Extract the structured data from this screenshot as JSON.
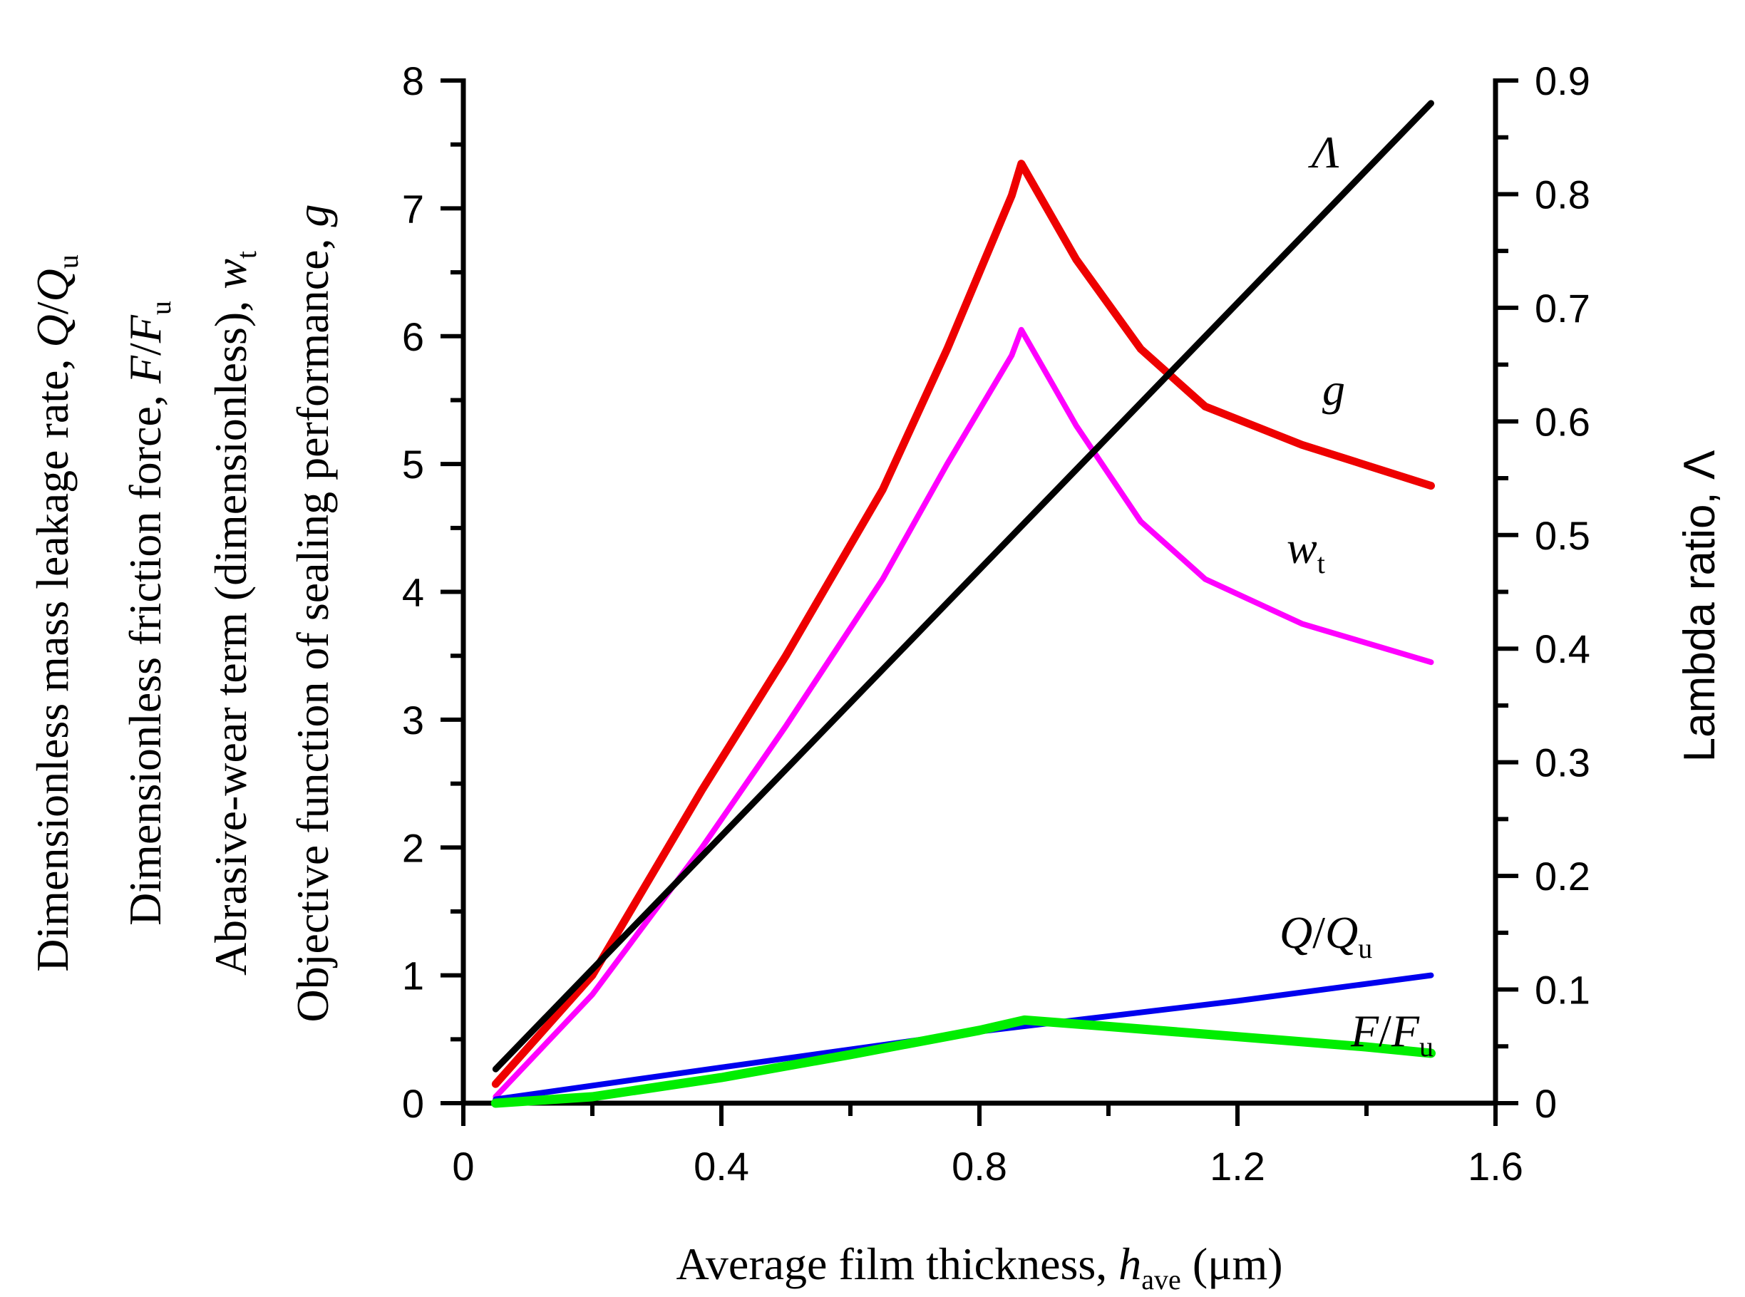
{
  "chart_data": {
    "type": "line",
    "x_axis": {
      "label_prefix": "Average film thickness, ",
      "label_var": "h",
      "label_sub": "ave",
      "label_suffix": " (μm)",
      "range": [
        0,
        1.6
      ],
      "ticks": [
        "0",
        "0.4",
        "0.8",
        "1.2",
        "1.6"
      ]
    },
    "y_axis_left": {
      "range": [
        0,
        8
      ],
      "ticks": [
        "0",
        "1",
        "2",
        "3",
        "4",
        "5",
        "6",
        "7",
        "8"
      ],
      "labels": [
        {
          "text": "Dimensionless mass leakage rate, ",
          "var": "Q",
          "mid": "/",
          "var2": "Q",
          "sub": "u"
        },
        {
          "text": "Dimensionless friction force, ",
          "var": "F",
          "mid": "/",
          "var2": "F",
          "sub": "u"
        },
        {
          "text": "Abrasive-wear term (dimensionless), ",
          "var": "w",
          "mid": "",
          "var2": "",
          "sub": "t"
        },
        {
          "text": "Objective function of sealing performance, ",
          "var": "g",
          "mid": "",
          "var2": "",
          "sub": ""
        }
      ]
    },
    "y_axis_right": {
      "label": "Lambda ratio, ",
      "label_var": "Λ",
      "range": [
        0,
        0.9
      ],
      "ticks": [
        "0",
        "0.1",
        "0.2",
        "0.3",
        "0.4",
        "0.5",
        "0.6",
        "0.7",
        "0.8",
        "0.9"
      ]
    },
    "series": [
      {
        "name": "g",
        "axis": "left",
        "color": "#ee0000",
        "label": {
          "var": "g",
          "mid": "",
          "var2": "",
          "sub": ""
        },
        "x": [
          0.05,
          0.2,
          0.37,
          0.5,
          0.65,
          0.75,
          0.85,
          0.865,
          0.95,
          1.05,
          1.15,
          1.3,
          1.5
        ],
        "y": [
          0.15,
          1.0,
          2.45,
          3.5,
          4.8,
          5.9,
          7.1,
          7.35,
          6.6,
          5.9,
          5.45,
          5.15,
          4.83
        ]
      },
      {
        "name": "w_t",
        "axis": "left",
        "color": "#ff00ff",
        "label": {
          "var": "w",
          "mid": "",
          "var2": "",
          "sub": "t"
        },
        "x": [
          0.05,
          0.2,
          0.37,
          0.5,
          0.65,
          0.75,
          0.85,
          0.865,
          0.95,
          1.05,
          1.15,
          1.3,
          1.5
        ],
        "y": [
          0.05,
          0.85,
          2.0,
          2.95,
          4.1,
          5.0,
          5.85,
          6.05,
          5.3,
          4.55,
          4.1,
          3.75,
          3.45
        ]
      },
      {
        "name": "Λ",
        "axis": "right",
        "color": "#000000",
        "label": {
          "var": "Λ",
          "mid": "",
          "var2": "",
          "sub": ""
        },
        "x": [
          0.05,
          1.5
        ],
        "y": [
          0.03,
          0.88
        ]
      },
      {
        "name": "Q/Q_u",
        "axis": "left",
        "color": "#0000ee",
        "label": {
          "var": "Q",
          "mid": "/",
          "var2": "Q",
          "sub": "u"
        },
        "x": [
          0.05,
          0.4,
          0.8,
          1.2,
          1.5
        ],
        "y": [
          0.03,
          0.28,
          0.56,
          0.8,
          1.0
        ]
      },
      {
        "name": "F/F_u",
        "axis": "left",
        "color": "#00ee00",
        "label": {
          "var": "F",
          "mid": "/",
          "var2": "F",
          "sub": "u"
        },
        "x": [
          0.05,
          0.2,
          0.4,
          0.6,
          0.8,
          0.87,
          1.0,
          1.2,
          1.4,
          1.5
        ],
        "y": [
          0.0,
          0.05,
          0.2,
          0.38,
          0.57,
          0.65,
          0.6,
          0.52,
          0.44,
          0.39
        ]
      }
    ]
  }
}
